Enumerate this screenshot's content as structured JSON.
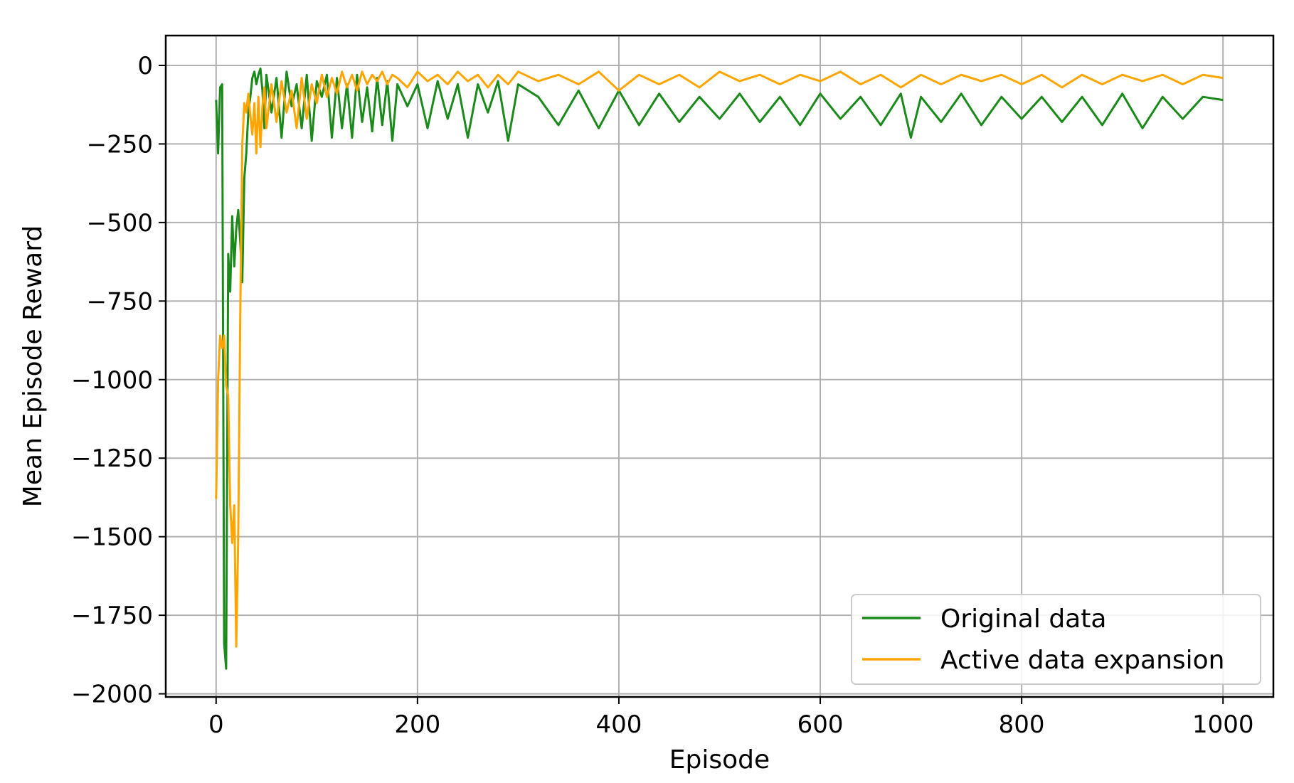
{
  "chart_data": {
    "type": "line",
    "title": "",
    "xlabel": "Episode",
    "ylabel": "Mean Episode Reward",
    "xlim": [
      -50,
      1050
    ],
    "ylim": [
      -2010,
      95
    ],
    "x_ticks": [
      0,
      200,
      400,
      600,
      800,
      1000
    ],
    "x_tick_labels": [
      "0",
      "200",
      "400",
      "600",
      "800",
      "1000"
    ],
    "y_ticks": [
      0,
      -250,
      -500,
      -750,
      -1000,
      -1250,
      -1500,
      -1750,
      -2000
    ],
    "y_tick_labels": [
      "0",
      "−250",
      "−500",
      "−750",
      "−1000",
      "−1250",
      "−1500",
      "−1750",
      "−2000"
    ],
    "grid": true,
    "legend_position": "lower-right",
    "series": [
      {
        "name": "Original data",
        "color": "#1a8a1a",
        "x": [
          0,
          2,
          4,
          6,
          8,
          10,
          12,
          14,
          16,
          18,
          20,
          22,
          24,
          26,
          28,
          30,
          32,
          34,
          36,
          38,
          40,
          42,
          44,
          46,
          48,
          50,
          55,
          60,
          65,
          70,
          75,
          80,
          85,
          90,
          95,
          100,
          105,
          110,
          115,
          120,
          125,
          130,
          135,
          140,
          145,
          150,
          155,
          160,
          165,
          170,
          175,
          180,
          190,
          200,
          210,
          220,
          230,
          240,
          250,
          260,
          270,
          280,
          290,
          300,
          320,
          340,
          360,
          380,
          400,
          420,
          440,
          460,
          480,
          500,
          520,
          540,
          560,
          580,
          600,
          620,
          640,
          660,
          680,
          690,
          700,
          720,
          740,
          760,
          780,
          800,
          820,
          840,
          860,
          880,
          900,
          920,
          940,
          960,
          980,
          1000
        ],
        "y": [
          -110,
          -280,
          -70,
          -60,
          -1840,
          -1920,
          -600,
          -720,
          -480,
          -640,
          -520,
          -460,
          -560,
          -690,
          -360,
          -280,
          -150,
          -100,
          -40,
          -20,
          -60,
          -30,
          -10,
          -80,
          -200,
          -30,
          -150,
          -40,
          -230,
          -20,
          -130,
          -60,
          -200,
          -30,
          -240,
          -50,
          -100,
          -30,
          -230,
          -40,
          -200,
          -60,
          -230,
          -30,
          -180,
          -70,
          -210,
          -40,
          -190,
          -50,
          -240,
          -60,
          -130,
          -60,
          -200,
          -50,
          -170,
          -60,
          -230,
          -60,
          -150,
          -50,
          -240,
          -60,
          -100,
          -190,
          -80,
          -200,
          -80,
          -190,
          -90,
          -180,
          -100,
          -170,
          -90,
          -180,
          -100,
          -190,
          -90,
          -170,
          -100,
          -190,
          -90,
          -230,
          -100,
          -180,
          -90,
          -190,
          -100,
          -170,
          -100,
          -180,
          -100,
          -190,
          -90,
          -200,
          -100,
          -170,
          -100,
          -110
        ]
      },
      {
        "name": "Active data expansion",
        "color": "#ffa500",
        "x": [
          0,
          2,
          4,
          6,
          8,
          10,
          12,
          14,
          16,
          18,
          20,
          22,
          24,
          26,
          28,
          30,
          32,
          34,
          36,
          38,
          40,
          42,
          44,
          46,
          48,
          50,
          55,
          60,
          65,
          70,
          75,
          80,
          85,
          90,
          95,
          100,
          105,
          110,
          115,
          120,
          125,
          130,
          135,
          140,
          145,
          150,
          155,
          160,
          165,
          170,
          175,
          180,
          190,
          200,
          210,
          220,
          230,
          240,
          250,
          260,
          270,
          280,
          290,
          300,
          320,
          340,
          360,
          380,
          400,
          420,
          440,
          460,
          480,
          500,
          520,
          540,
          560,
          580,
          600,
          620,
          640,
          660,
          680,
          700,
          720,
          740,
          760,
          780,
          800,
          820,
          840,
          860,
          880,
          900,
          920,
          940,
          960,
          980,
          1000
        ],
        "y": [
          -1380,
          -1000,
          -860,
          -900,
          -860,
          -1020,
          -1050,
          -1400,
          -1520,
          -1400,
          -1850,
          -1500,
          -800,
          -250,
          -120,
          -150,
          -90,
          -160,
          -220,
          -120,
          -280,
          -100,
          -260,
          -130,
          -70,
          -200,
          -60,
          -180,
          -50,
          -150,
          -80,
          -200,
          -40,
          -170,
          -60,
          -120,
          -30,
          -100,
          -40,
          -90,
          -20,
          -70,
          -30,
          -80,
          -20,
          -60,
          -30,
          -50,
          -20,
          -60,
          -30,
          -40,
          -70,
          -20,
          -50,
          -30,
          -60,
          -20,
          -50,
          -30,
          -70,
          -30,
          -60,
          -20,
          -50,
          -30,
          -60,
          -20,
          -80,
          -30,
          -60,
          -30,
          -70,
          -20,
          -50,
          -30,
          -60,
          -30,
          -50,
          -20,
          -60,
          -30,
          -70,
          -30,
          -60,
          -30,
          -50,
          -30,
          -60,
          -30,
          -70,
          -30,
          -60,
          -30,
          -50,
          -30,
          -60,
          -30,
          -40
        ]
      }
    ]
  }
}
